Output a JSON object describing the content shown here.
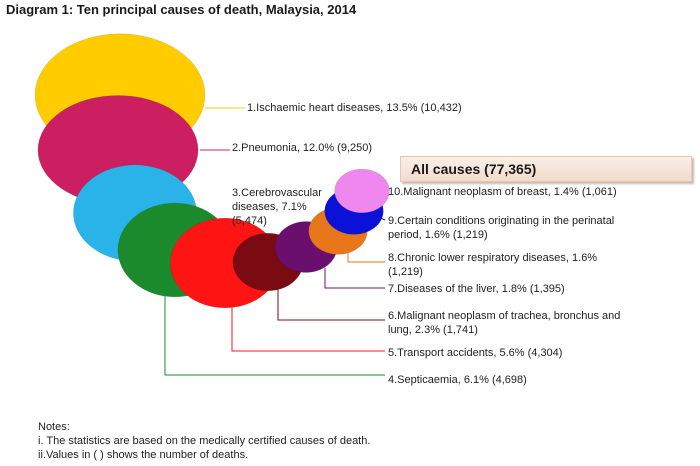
{
  "title": "Diagram 1: Ten principal causes of death, Malaysia, 2014",
  "all_causes": "All causes (77,365)",
  "labels": {
    "l1": "1.Ischaemic heart diseases, 13.5% (10,432)",
    "l2": "2.Pneumonia, 12.0% (9,250)",
    "l3a": "3.Cerebrovascular",
    "l3b": "diseases, 7.1%",
    "l3c": "(5,474)",
    "l4": "4.Septicaemia, 6.1% (4,698)",
    "l5": "5.Transport accidents, 5.6% (4,304)",
    "l6a": "6.Malignant neoplasm of trachea, bronchus and",
    "l6b": "lung, 2.3% (1,741)",
    "l7": "7.Diseases of the liver, 1.8% (1,395)",
    "l8a": "8.Chronic lower respiratory diseases, 1.6%",
    "l8b": "(1,219)",
    "l9a": "9.Certain conditions originating in the perinatal",
    "l9b": "period, 1.6% (1,219)",
    "l10": "10.Malignant neoplasm of breast, 1.4% (1,061)"
  },
  "notes": {
    "heading": "Notes:",
    "n1": "i. The statistics are based on the medically certified causes of death.",
    "n2": "ii.Values in ( ) shows the number of deaths."
  },
  "chart_data": {
    "type": "bubble",
    "title": "Diagram 1: Ten principal causes of death, Malaysia, 2014",
    "total": 77365,
    "series": [
      {
        "rank": 1,
        "name": "Ischaemic heart diseases",
        "percent": 13.5,
        "deaths": 10432,
        "color": "#ffcc00"
      },
      {
        "rank": 2,
        "name": "Pneumonia",
        "percent": 12.0,
        "deaths": 9250,
        "color": "#cc1f62"
      },
      {
        "rank": 3,
        "name": "Cerebrovascular diseases",
        "percent": 7.1,
        "deaths": 5474,
        "color": "#29b3e8"
      },
      {
        "rank": 4,
        "name": "Septicaemia",
        "percent": 6.1,
        "deaths": 4698,
        "color": "#1a8a2c"
      },
      {
        "rank": 5,
        "name": "Transport accidents",
        "percent": 5.6,
        "deaths": 4304,
        "color": "#ff1414"
      },
      {
        "rank": 6,
        "name": "Malignant neoplasm of trachea, bronchus and lung",
        "percent": 2.3,
        "deaths": 1741,
        "color": "#7a0b12"
      },
      {
        "rank": 7,
        "name": "Diseases of the liver",
        "percent": 1.8,
        "deaths": 1395,
        "color": "#6a0f6e"
      },
      {
        "rank": 8,
        "name": "Chronic lower respiratory diseases",
        "percent": 1.6,
        "deaths": 1219,
        "color": "#e8761a"
      },
      {
        "rank": 9,
        "name": "Certain conditions originating in the perinatal period",
        "percent": 1.6,
        "deaths": 1219,
        "color": "#0a12d8"
      },
      {
        "rank": 10,
        "name": "Malignant neoplasm of breast",
        "percent": 1.4,
        "deaths": 1061,
        "color": "#ee88ee"
      }
    ]
  }
}
